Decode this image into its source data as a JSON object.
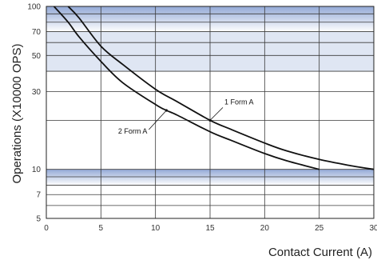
{
  "chart_data": {
    "type": "line",
    "xlabel": "Contact Current (A)",
    "ylabel": "Operations (X10000 OPS)",
    "x_ticks": [
      "0",
      "5",
      "10",
      "15",
      "20",
      "25",
      "30"
    ],
    "y_ticks": [
      "5",
      "7",
      "10",
      "30",
      "50",
      "70",
      "100"
    ],
    "xlim": [
      0,
      30
    ],
    "ylim": [
      5,
      100
    ],
    "y_scale": "log",
    "grid": true,
    "series": [
      {
        "name": "1 Form A",
        "color": "#111111",
        "x": [
          2,
          3,
          5,
          7,
          10,
          12,
          15,
          17,
          20,
          22,
          25,
          28,
          30
        ],
        "y": [
          100,
          85,
          57,
          44,
          31,
          26,
          20,
          17.5,
          14.5,
          13,
          11.5,
          10.5,
          10
        ]
      },
      {
        "name": "2 Form A",
        "color": "#111111",
        "x": [
          0.7,
          2,
          3,
          5,
          7,
          10,
          11,
          12,
          15,
          17,
          20,
          22,
          25
        ],
        "y": [
          100,
          80,
          65,
          46,
          34,
          25,
          23,
          21.5,
          17,
          15,
          12.5,
          11.3,
          10
        ]
      }
    ],
    "annotations": [
      {
        "text": "1 Form A",
        "series": 0,
        "at_x": 15
      },
      {
        "text": "2 Form A",
        "series": 1,
        "at_x": 11
      }
    ]
  }
}
